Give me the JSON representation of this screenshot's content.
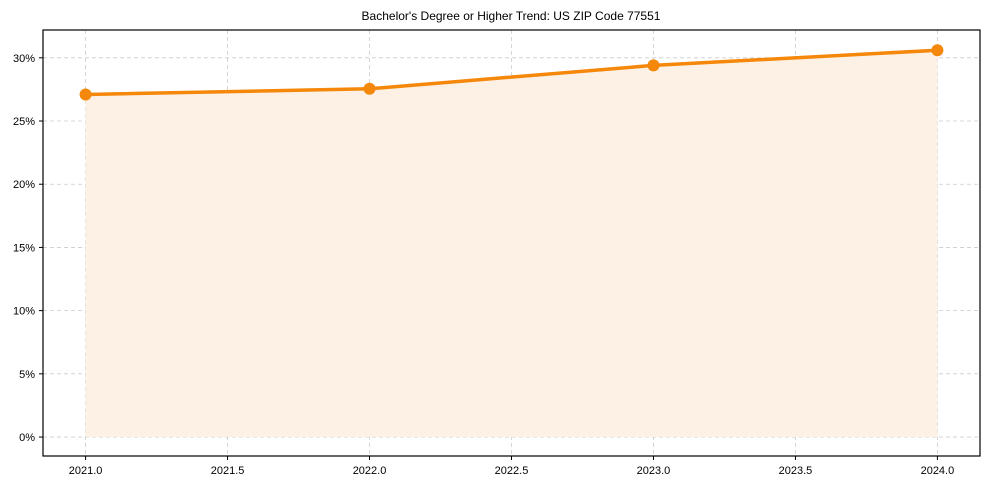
{
  "chart_data": {
    "type": "line",
    "title": "Bachelor's Degree or Higher Trend: US ZIP Code 77551",
    "xlabel": "",
    "ylabel": "",
    "x": [
      2021,
      2022,
      2023,
      2024
    ],
    "series": [
      {
        "name": "Bachelor's Degree or Higher",
        "values": [
          27.1,
          27.55,
          29.4,
          30.6
        ],
        "color": "#f5870a",
        "fill": "#fdf0e4"
      }
    ],
    "xlim": [
      2020.85,
      2024.15
    ],
    "ylim": [
      -1.5,
      32.2
    ],
    "x_ticks": [
      2021.0,
      2021.5,
      2022.0,
      2022.5,
      2023.0,
      2023.5,
      2024.0
    ],
    "x_tick_labels": [
      "2021.0",
      "2021.5",
      "2022.0",
      "2022.5",
      "2023.0",
      "2023.5",
      "2024.0"
    ],
    "y_ticks": [
      0,
      5,
      10,
      15,
      20,
      25,
      30
    ],
    "y_tick_labels": [
      "0%",
      "5%",
      "10%",
      "15%",
      "20%",
      "25%",
      "30%"
    ],
    "grid": true,
    "legend": null
  }
}
